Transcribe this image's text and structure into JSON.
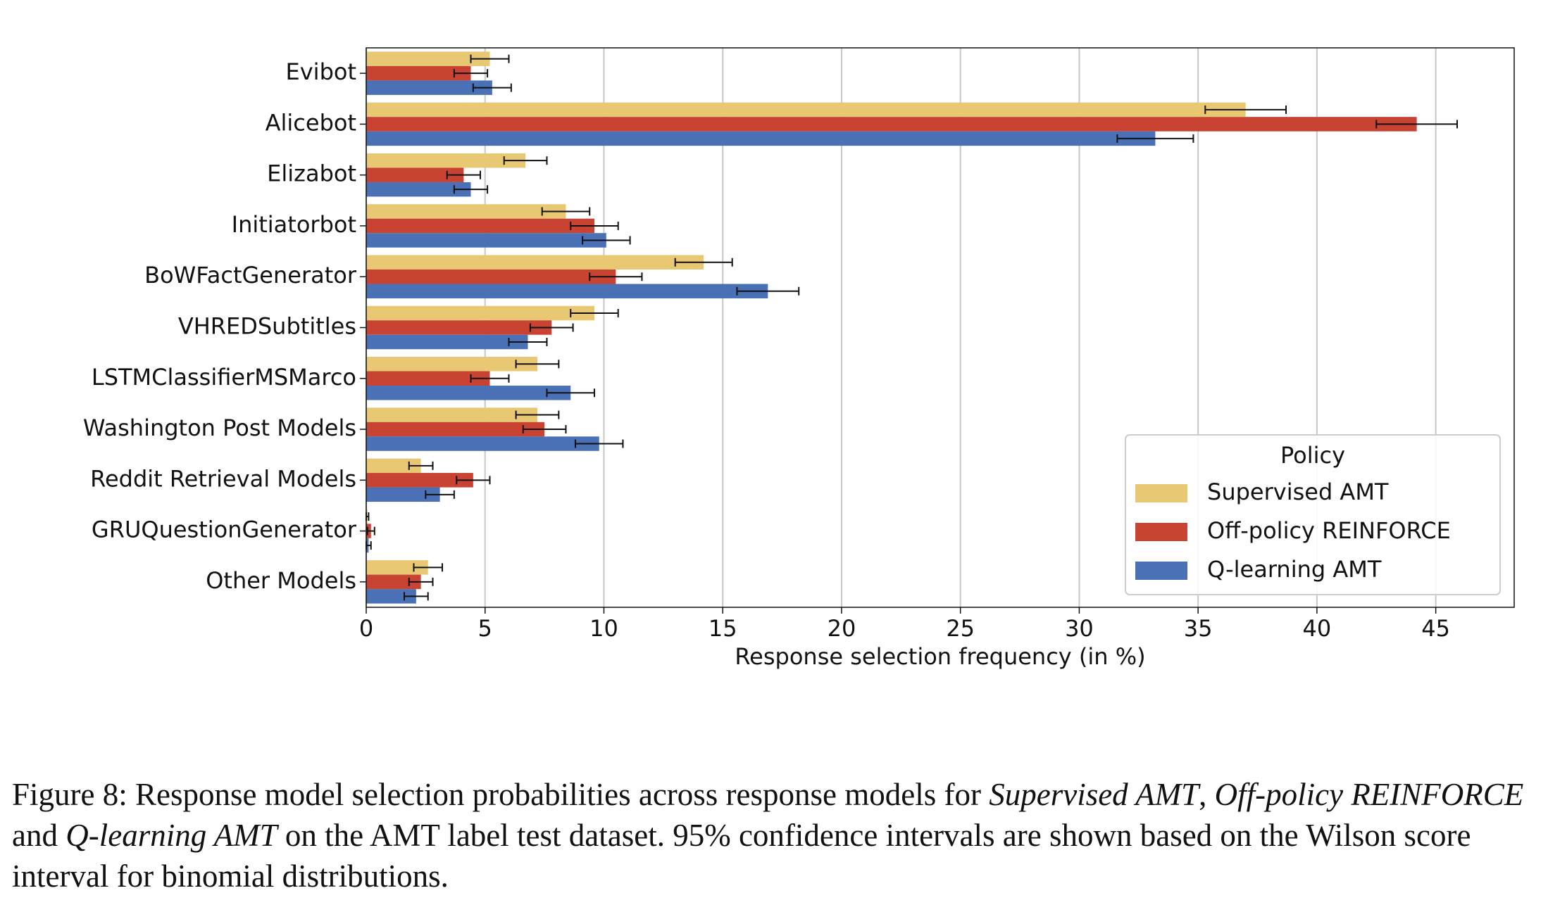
{
  "chart_data": {
    "type": "hbar",
    "orientation": "horizontal",
    "categories": [
      "Evibot",
      "Alicebot",
      "Elizabot",
      "Initiatorbot",
      "BoWFactGenerator",
      "VHREDSubtitles",
      "LSTMClassifierMSMarco",
      "Washington Post Models",
      "Reddit Retrieval Models",
      "GRUQuestionGenerator",
      "Other Models"
    ],
    "series": [
      {
        "name": "Supervised AMT",
        "color": "#e8c872",
        "values": [
          5.2,
          37.0,
          6.7,
          8.4,
          14.2,
          9.6,
          7.2,
          7.2,
          2.3,
          0.05,
          2.6
        ],
        "errors": [
          0.8,
          1.7,
          0.9,
          1.0,
          1.2,
          1.0,
          0.9,
          0.9,
          0.5,
          0.05,
          0.6
        ]
      },
      {
        "name": "Off-policy REINFORCE",
        "color": "#c94333",
        "values": [
          4.4,
          44.2,
          4.1,
          9.6,
          10.5,
          7.8,
          5.2,
          7.5,
          4.5,
          0.2,
          2.3
        ],
        "errors": [
          0.7,
          1.7,
          0.7,
          1.0,
          1.1,
          0.9,
          0.8,
          0.9,
          0.7,
          0.15,
          0.5
        ]
      },
      {
        "name": "Q-learning AMT",
        "color": "#4a70b5",
        "values": [
          5.3,
          33.2,
          4.4,
          10.1,
          16.9,
          6.8,
          8.6,
          9.8,
          3.1,
          0.1,
          2.1
        ],
        "errors": [
          0.8,
          1.6,
          0.7,
          1.0,
          1.3,
          0.8,
          1.0,
          1.0,
          0.6,
          0.1,
          0.5
        ]
      }
    ],
    "xlabel": "Response selection frequency (in %)",
    "xlim": [
      0,
      48.3
    ],
    "xticks": [
      0,
      5,
      10,
      15,
      20,
      25,
      30,
      35,
      40,
      45
    ],
    "grid": true,
    "legend_title": "Policy",
    "legend_position": "lower right"
  },
  "caption": [
    {
      "text": "Figure 8: Response model selection probabilities across response models for ",
      "italic": false
    },
    {
      "text": "Supervised AMT",
      "italic": true
    },
    {
      "text": ", ",
      "italic": false
    },
    {
      "text": "Off-policy REINFORCE",
      "italic": true
    },
    {
      "text": " and ",
      "italic": false
    },
    {
      "text": "Q-learning AMT",
      "italic": true
    },
    {
      "text": " on the AMT label test dataset. 95% confidence intervals are shown based on the Wilson score interval for binomial distributions.",
      "italic": false
    }
  ]
}
